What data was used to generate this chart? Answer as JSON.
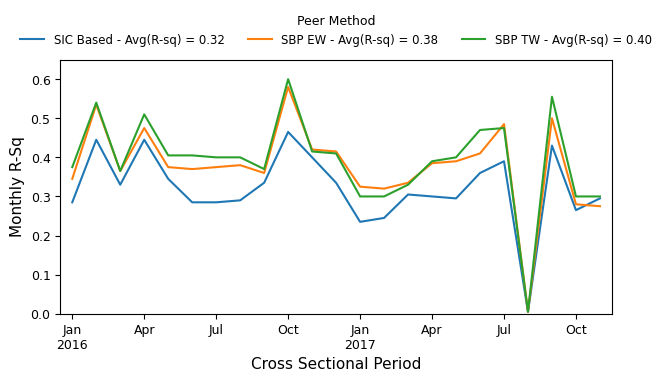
{
  "title": "Peer Method",
  "xlabel": "Cross Sectional Period",
  "ylabel": "Monthly R-Sq",
  "ylim": [
    0.0,
    0.65
  ],
  "yticks": [
    0.0,
    0.1,
    0.2,
    0.3,
    0.4,
    0.5,
    0.6
  ],
  "legend_title": "Peer Method",
  "series": [
    {
      "label": "SIC Based - Avg(R-sq) = 0.32",
      "color": "#1f77b4",
      "values": [
        0.285,
        0.445,
        0.33,
        0.445,
        0.345,
        0.285,
        0.285,
        0.29,
        0.335,
        0.465,
        0.4,
        0.335,
        0.235,
        0.245,
        0.305,
        0.3,
        0.295,
        0.36,
        0.39,
        0.005,
        0.43,
        0.265,
        0.295
      ]
    },
    {
      "label": "SBP EW - Avg(R-sq) = 0.38",
      "color": "#ff7f0e",
      "values": [
        0.345,
        0.535,
        0.365,
        0.475,
        0.375,
        0.37,
        0.375,
        0.38,
        0.36,
        0.58,
        0.42,
        0.415,
        0.325,
        0.32,
        0.335,
        0.385,
        0.39,
        0.41,
        0.485,
        0.005,
        0.5,
        0.28,
        0.275
      ]
    },
    {
      "label": "SBP TW - Avg(R-sq) = 0.40",
      "color": "#2ca02c",
      "values": [
        0.375,
        0.54,
        0.365,
        0.51,
        0.405,
        0.405,
        0.4,
        0.4,
        0.37,
        0.6,
        0.415,
        0.41,
        0.3,
        0.3,
        0.33,
        0.39,
        0.4,
        0.47,
        0.475,
        0.005,
        0.555,
        0.3,
        0.3
      ]
    }
  ],
  "n_points": 23,
  "xtick_positions": [
    0,
    3,
    6,
    9,
    12,
    15,
    18,
    21
  ],
  "xtick_labels": [
    "Jan\n2016",
    "Apr",
    "Jul",
    "Oct",
    "Jan\n2017",
    "Apr",
    "Jul",
    "Oct"
  ],
  "figsize": [
    6.49,
    3.85
  ],
  "dpi": 100
}
